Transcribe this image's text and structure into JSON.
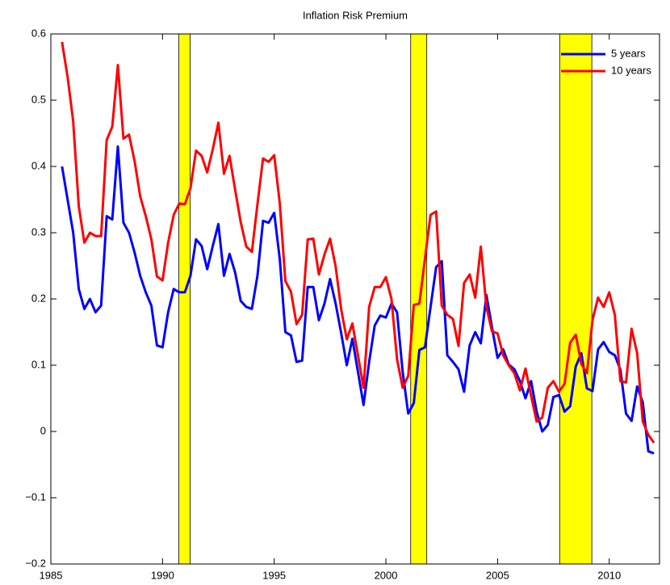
{
  "chart_data": {
    "type": "line",
    "title": "Inflation Risk Premium",
    "x": [
      1985.5,
      1985.75,
      1986,
      1986.25,
      1986.5,
      1986.75,
      1987,
      1987.25,
      1987.5,
      1987.75,
      1988,
      1988.25,
      1988.5,
      1988.75,
      1989,
      1989.25,
      1989.5,
      1989.75,
      1990,
      1990.25,
      1990.5,
      1990.75,
      1991,
      1991.25,
      1991.5,
      1991.75,
      1992,
      1992.25,
      1992.5,
      1992.75,
      1993,
      1993.25,
      1993.5,
      1993.75,
      1994,
      1994.25,
      1994.5,
      1994.75,
      1995,
      1995.25,
      1995.5,
      1995.75,
      1996,
      1996.25,
      1996.5,
      1996.75,
      1997,
      1997.25,
      1997.5,
      1997.75,
      1998,
      1998.25,
      1998.5,
      1998.75,
      1999,
      1999.25,
      1999.5,
      1999.75,
      2000,
      2000.25,
      2000.5,
      2000.75,
      2001,
      2001.25,
      2001.5,
      2001.75,
      2002,
      2002.25,
      2002.5,
      2002.75,
      2003,
      2003.25,
      2003.5,
      2003.75,
      2004,
      2004.25,
      2004.5,
      2004.75,
      2005,
      2005.25,
      2005.5,
      2005.75,
      2006,
      2006.25,
      2006.5,
      2006.75,
      2007,
      2007.25,
      2007.5,
      2007.75,
      2008,
      2008.25,
      2008.5,
      2008.75,
      2009,
      2009.25,
      2009.5,
      2009.75,
      2010,
      2010.25,
      2010.5,
      2010.75,
      2011,
      2011.25,
      2011.5,
      2011.75,
      2012
    ],
    "series": [
      {
        "name": "5 years",
        "color": "#0000ff",
        "values": [
          0.4,
          0.35,
          0.3,
          0.215,
          0.185,
          0.2,
          0.18,
          0.19,
          0.325,
          0.32,
          0.43,
          0.315,
          0.3,
          0.27,
          0.235,
          0.21,
          0.19,
          0.13,
          0.127,
          0.18,
          0.215,
          0.21,
          0.21,
          0.235,
          0.29,
          0.28,
          0.245,
          0.28,
          0.313,
          0.235,
          0.268,
          0.24,
          0.197,
          0.188,
          0.185,
          0.235,
          0.318,
          0.315,
          0.33,
          0.26,
          0.15,
          0.145,
          0.105,
          0.107,
          0.218,
          0.218,
          0.168,
          0.193,
          0.23,
          0.193,
          0.148,
          0.1,
          0.14,
          0.09,
          0.04,
          0.105,
          0.16,
          0.175,
          0.172,
          0.193,
          0.18,
          0.09,
          0.027,
          0.043,
          0.123,
          0.127,
          0.188,
          0.248,
          0.257,
          0.115,
          0.105,
          0.094,
          0.06,
          0.13,
          0.15,
          0.133,
          0.206,
          0.157,
          0.111,
          0.124,
          0.101,
          0.094,
          0.076,
          0.05,
          0.076,
          0.03,
          0.0,
          0.01,
          0.052,
          0.055,
          0.03,
          0.038,
          0.098,
          0.118,
          0.065,
          0.061,
          0.124,
          0.135,
          0.12,
          0.115,
          0.093,
          0.027,
          0.016,
          0.068,
          0.044,
          -0.03,
          -0.033
        ]
      },
      {
        "name": "10 years",
        "color": "#ff0000",
        "values": [
          0.588,
          0.535,
          0.468,
          0.34,
          0.285,
          0.3,
          0.295,
          0.295,
          0.44,
          0.46,
          0.553,
          0.442,
          0.448,
          0.408,
          0.355,
          0.325,
          0.29,
          0.234,
          0.228,
          0.285,
          0.327,
          0.344,
          0.343,
          0.367,
          0.424,
          0.416,
          0.391,
          0.426,
          0.466,
          0.389,
          0.416,
          0.365,
          0.316,
          0.279,
          0.271,
          0.343,
          0.412,
          0.407,
          0.417,
          0.344,
          0.227,
          0.211,
          0.162,
          0.176,
          0.29,
          0.291,
          0.237,
          0.267,
          0.291,
          0.249,
          0.184,
          0.139,
          0.163,
          0.115,
          0.066,
          0.188,
          0.218,
          0.218,
          0.233,
          0.2,
          0.109,
          0.066,
          0.084,
          0.191,
          0.193,
          0.261,
          0.327,
          0.332,
          0.19,
          0.176,
          0.17,
          0.129,
          0.224,
          0.237,
          0.202,
          0.279,
          0.188,
          0.151,
          0.148,
          0.115,
          0.1,
          0.088,
          0.062,
          0.095,
          0.054,
          0.015,
          0.021,
          0.066,
          0.076,
          0.06,
          0.072,
          0.134,
          0.146,
          0.102,
          0.088,
          0.168,
          0.202,
          0.188,
          0.21,
          0.176,
          0.076,
          0.074,
          0.155,
          0.118,
          0.015,
          -0.005,
          -0.017
        ]
      }
    ],
    "shaded_periods": [
      [
        1990.73,
        1991.24
      ],
      [
        2001.11,
        2001.83
      ],
      [
        2007.78,
        2009.22
      ]
    ],
    "shade_color": "#ffff00",
    "xlim": [
      1985,
      2012.25
    ],
    "xticks": [
      1985,
      1990,
      1995,
      2000,
      2005,
      2010
    ],
    "ylim": [
      -0.2,
      0.6
    ],
    "yticks": [
      {
        "value": -0.2,
        "label": "−0.2"
      },
      {
        "value": -0.1,
        "label": "−0.1"
      },
      0,
      0.1,
      0.2,
      0.3,
      0.4,
      0.5,
      0.6
    ],
    "legend": "upper-right"
  }
}
